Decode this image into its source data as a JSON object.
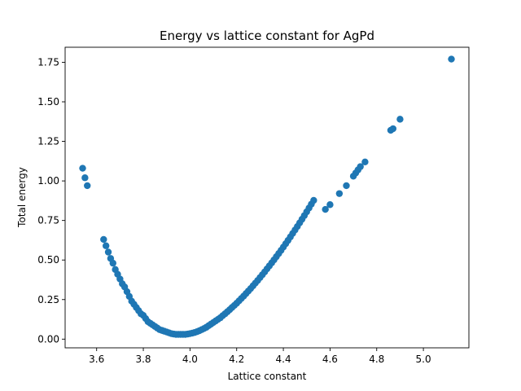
{
  "chart_data": {
    "type": "scatter",
    "title": "Energy vs lattice constant for AgPd",
    "xlabel": "Lattice constant",
    "ylabel": "Total energy",
    "xlim": [
      3.465,
      5.195
    ],
    "ylim": [
      -0.055,
      1.845
    ],
    "xticks": [
      3.6,
      3.8,
      4.0,
      4.2,
      4.4,
      4.6,
      4.8,
      5.0
    ],
    "xtick_labels": [
      "3.6",
      "3.8",
      "4.0",
      "4.2",
      "4.4",
      "4.6",
      "4.8",
      "5.0"
    ],
    "yticks": [
      0.0,
      0.25,
      0.5,
      0.75,
      1.0,
      1.25,
      1.5,
      1.75
    ],
    "ytick_labels": [
      "0.00",
      "0.25",
      "0.50",
      "0.75",
      "1.00",
      "1.25",
      "1.50",
      "1.75"
    ],
    "grid": false,
    "marker_color": "#1f77b4",
    "series": [
      {
        "x": [
          3.54,
          3.55,
          3.56,
          3.63,
          3.64,
          3.65,
          3.66,
          3.67,
          3.68,
          3.69,
          3.7,
          3.71,
          3.72,
          3.73,
          3.74,
          3.75,
          3.76,
          3.77,
          3.78,
          3.79,
          3.8,
          3.81,
          3.82,
          3.83,
          3.84,
          3.85,
          3.86,
          3.87,
          3.88,
          3.89,
          3.9,
          3.91,
          3.92,
          3.93,
          3.94,
          3.95,
          3.96,
          3.97,
          3.98,
          3.99,
          4.0,
          4.01,
          4.02,
          4.03,
          4.04,
          4.05,
          4.06,
          4.07,
          4.08,
          4.09,
          4.1,
          4.11,
          4.12,
          4.13,
          4.14,
          4.15,
          4.16,
          4.17,
          4.18,
          4.19,
          4.2,
          4.21,
          4.22,
          4.23,
          4.24,
          4.25,
          4.26,
          4.27,
          4.28,
          4.29,
          4.3,
          4.31,
          4.32,
          4.33,
          4.34,
          4.35,
          4.36,
          4.37,
          4.38,
          4.39,
          4.4,
          4.41,
          4.42,
          4.43,
          4.44,
          4.45,
          4.46,
          4.47,
          4.48,
          4.49,
          4.5,
          4.51,
          4.52,
          4.53,
          4.58,
          4.6,
          4.64,
          4.67,
          4.7,
          4.71,
          4.72,
          4.73,
          4.75,
          4.86,
          4.87,
          4.9,
          5.12
        ],
        "y": [
          1.08,
          1.02,
          0.97,
          0.63,
          0.59,
          0.55,
          0.51,
          0.48,
          0.44,
          0.41,
          0.38,
          0.35,
          0.33,
          0.3,
          0.27,
          0.24,
          0.22,
          0.2,
          0.18,
          0.16,
          0.15,
          0.13,
          0.11,
          0.1,
          0.09,
          0.08,
          0.07,
          0.06,
          0.055,
          0.05,
          0.045,
          0.04,
          0.035,
          0.032,
          0.03,
          0.03,
          0.03,
          0.03,
          0.03,
          0.032,
          0.035,
          0.038,
          0.042,
          0.047,
          0.053,
          0.06,
          0.067,
          0.075,
          0.085,
          0.095,
          0.105,
          0.115,
          0.125,
          0.135,
          0.148,
          0.16,
          0.173,
          0.186,
          0.2,
          0.213,
          0.227,
          0.242,
          0.257,
          0.272,
          0.288,
          0.304,
          0.32,
          0.337,
          0.354,
          0.371,
          0.389,
          0.407,
          0.425,
          0.444,
          0.463,
          0.482,
          0.501,
          0.521,
          0.541,
          0.561,
          0.582,
          0.603,
          0.624,
          0.646,
          0.668,
          0.69,
          0.712,
          0.735,
          0.758,
          0.781,
          0.805,
          0.829,
          0.853,
          0.877,
          0.82,
          0.85,
          0.92,
          0.97,
          1.03,
          1.05,
          1.07,
          1.09,
          1.12,
          1.32,
          1.33,
          1.39,
          1.77
        ]
      }
    ]
  }
}
